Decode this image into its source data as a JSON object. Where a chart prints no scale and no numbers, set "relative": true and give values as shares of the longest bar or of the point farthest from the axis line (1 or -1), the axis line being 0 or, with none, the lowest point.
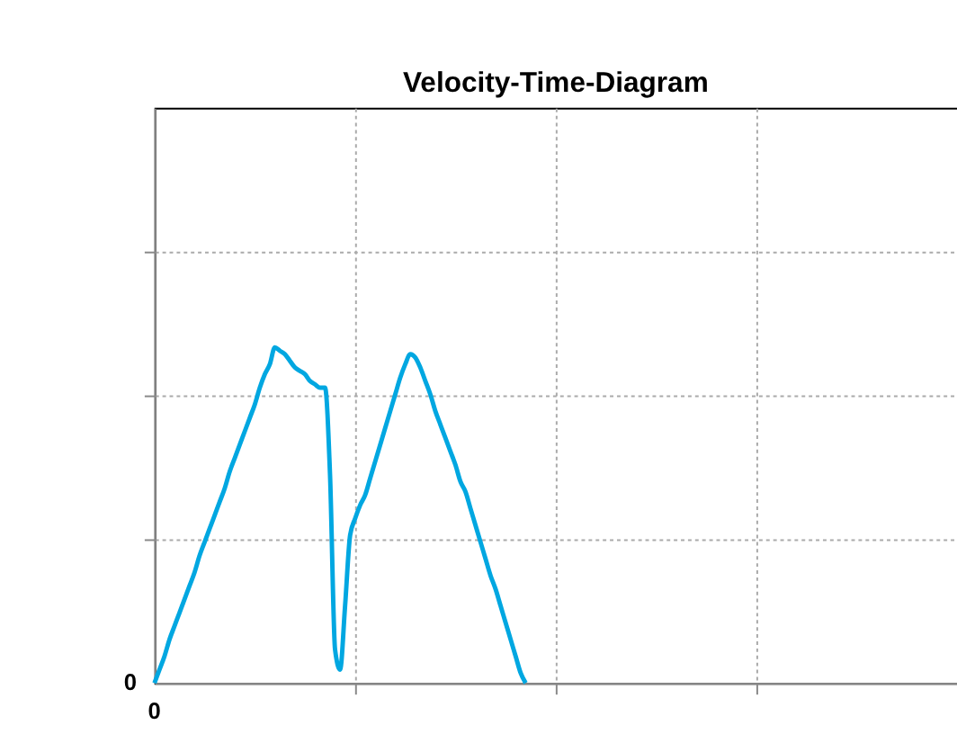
{
  "chart_data": {
    "type": "line",
    "title": "Velocity-Time-Diagram",
    "relative": true,
    "categories": [
      null,
      null,
      null,
      null,
      null,
      null,
      null,
      null,
      null,
      null,
      null,
      null,
      null,
      null,
      null,
      null,
      null,
      null,
      null,
      null,
      null,
      null,
      null,
      null,
      null,
      null,
      null,
      null,
      null,
      null,
      null,
      null,
      null,
      null,
      null,
      null,
      null,
      null,
      null,
      null,
      null,
      null,
      null,
      null,
      null,
      null,
      null,
      null,
      null,
      null,
      null,
      null,
      null,
      null,
      null,
      null,
      null,
      null,
      null,
      null,
      null,
      null,
      null,
      null,
      null,
      null,
      null,
      null,
      null,
      null,
      null,
      null,
      null,
      null,
      null
    ],
    "series": [
      {
        "color": "#00a7e1",
        "values": [
          0,
          0.04,
          0.08,
          0.13,
          0.17,
          0.21,
          0.25,
          0.29,
          0.33,
          0.38,
          0.42,
          0.46,
          0.5,
          0.54,
          0.58,
          0.63,
          0.67,
          0.71,
          0.75,
          0.79,
          0.83,
          0.88,
          0.92,
          0.95,
          1.0,
          0.99,
          0.98,
          0.96,
          0.94,
          0.93,
          0.92,
          0.9,
          0.89,
          0.88,
          0.88,
          0.62,
          0.1,
          0.04,
          0.23,
          0.44,
          0.49,
          0.53,
          0.56,
          0.61,
          0.66,
          0.71,
          0.76,
          0.81,
          0.86,
          0.91,
          0.95,
          0.98,
          0.97,
          0.94,
          0.9,
          0.86,
          0.81,
          0.77,
          0.73,
          0.69,
          0.65,
          0.6,
          0.57,
          0.52,
          0.47,
          0.42,
          0.37,
          0.32,
          0.28,
          0.23,
          0.18,
          0.13,
          0.08,
          0.03,
          0
        ]
      }
    ],
    "annotations": [
      "0",
      "0"
    ],
    "grid": true,
    "marker": "none",
    "line_style": "solid",
    "legend": false
  }
}
